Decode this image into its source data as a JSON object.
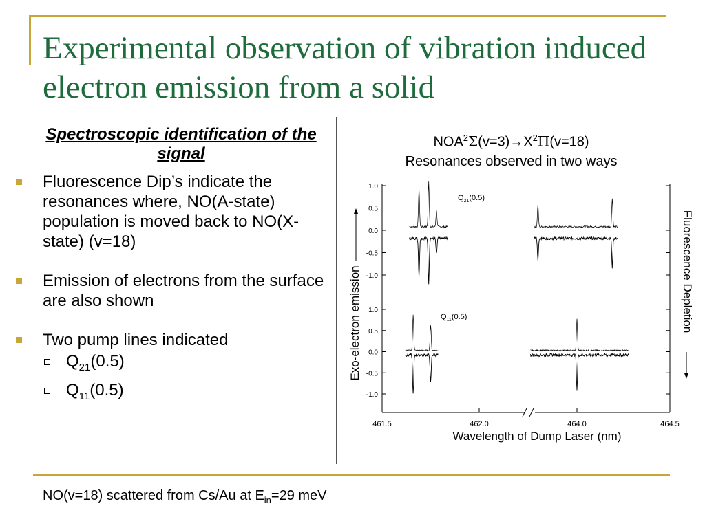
{
  "slide": {
    "title": "Experimental observation of vibration induced electron emission from a solid",
    "subheading": "Spectroscopic identification of the signal",
    "bullets": [
      "Fluorescence Dip’s indicate the resonances where, NO(A-state) population is moved back to NO(X-state) (v=18)",
      "Emission of electrons from the surface are also shown",
      "Two pump lines indicated"
    ],
    "sub_bullets": [
      {
        "main": "Q",
        "sub": "21",
        "rest": "(0.5)"
      },
      {
        "main": "Q",
        "sub": "11",
        "rest": "(0.5)"
      }
    ],
    "footer": {
      "main": "NO(v=18) scattered from Cs/Au at E",
      "sub": "in",
      "rest": "=29 meV"
    },
    "figure_title_line1": {
      "a": "NOA",
      "b": "2",
      "c": "Σ",
      "d": "(v=3)→X",
      "e": "2",
      "f": "Π",
      "g": "(v=18)"
    },
    "figure_title_line2": "Resonances observed in two ways"
  },
  "chart_data": [
    {
      "type": "line",
      "panel": "top",
      "annotation": {
        "main": "Q",
        "sub": "21",
        "rest": "(0.5)"
      },
      "y_ticks": [
        "1.0",
        "0.5",
        "0.0",
        "-0.5",
        "-1.0"
      ],
      "ylim": [
        -1.2,
        1.0
      ],
      "ylabel": "Exo-electron emission",
      "ylabel_right": "Fluorescence Depletion",
      "series": [
        {
          "role": "exo-electron emission (upper trace)",
          "peaks_nm": [
            461.69,
            461.74,
            461.78,
            463.79,
            464.19
          ]
        },
        {
          "role": "fluorescence depletion (lower trace)",
          "dips_nm": [
            461.69,
            461.74,
            461.78,
            463.79,
            464.19
          ]
        }
      ]
    },
    {
      "type": "line",
      "panel": "bottom",
      "annotation": {
        "main": "Q",
        "sub": "11",
        "rest": "(0.5)"
      },
      "y_ticks": [
        "1.0",
        "0.5",
        "0.0",
        "-0.5",
        "-1.0"
      ],
      "ylim": [
        -1.2,
        1.0
      ],
      "series": [
        {
          "role": "exo-electron emission (upper trace)",
          "peaks_nm": [
            461.66,
            461.75,
            464.0
          ]
        },
        {
          "role": "fluorescence depletion (lower trace)",
          "dips_nm": [
            461.66,
            461.75,
            464.0
          ]
        }
      ]
    }
  ],
  "x_axis": {
    "tick_labels": [
      "461.5",
      "462.0",
      "464.0",
      "464.5"
    ],
    "xlabel": "Wavelength of Dump Laser (nm)",
    "broken_axis": true
  }
}
